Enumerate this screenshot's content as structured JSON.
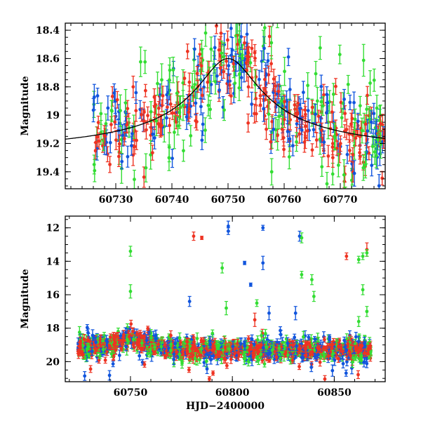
{
  "colors": {
    "green": "#33dd33",
    "blue": "#1155dd",
    "red": "#ee3322",
    "model": "#000000"
  },
  "chart_data": [
    {
      "type": "scatter",
      "panel": "top",
      "xlabel": "",
      "ylabel": "Magnitude",
      "xlim": [
        60721,
        60778
      ],
      "ylim": [
        19.52,
        18.35
      ],
      "y_inverted": true,
      "xticks_major": [
        60730,
        60740,
        60750,
        60760,
        60770
      ],
      "yticks_major": [
        18.4,
        18.6,
        18.8,
        19,
        19.2,
        19.4
      ],
      "ytick_labels": [
        "18.4",
        "18.6",
        "18.8",
        "19",
        "19.2",
        "19.4"
      ],
      "model_curve": {
        "description_free": true,
        "peak_time": 60750,
        "baseline_mag": 19.3,
        "peak_mag": 18.6,
        "width_days": 5.5
      },
      "series": [
        {
          "color_key": "green",
          "scatter": 0.22,
          "err": 0.09
        },
        {
          "color_key": "blue",
          "scatter": 0.16,
          "err": 0.07
        },
        {
          "color_key": "red",
          "scatter": 0.13,
          "err": 0.06
        }
      ]
    },
    {
      "type": "scatter",
      "panel": "bottom",
      "xlabel": "HJD−2400000",
      "ylabel": "Magnitude",
      "xlim": [
        60718,
        60875
      ],
      "ylim": [
        21.2,
        11.3
      ],
      "y_inverted": true,
      "xticks_major": [
        60750,
        60800,
        60850
      ],
      "yticks_major": [
        12,
        14,
        16,
        18,
        20
      ],
      "baseline_mag": 19.25,
      "outliers": [
        {
          "x": 60750,
          "y": 13.4,
          "err": 0.3,
          "color_key": "green"
        },
        {
          "x": 60750,
          "y": 15.8,
          "err": 0.4,
          "color_key": "green"
        },
        {
          "x": 60781,
          "y": 12.5,
          "err": 0.25,
          "color_key": "red"
        },
        {
          "x": 60785,
          "y": 12.6,
          "err": 0.1,
          "color_key": "red"
        },
        {
          "x": 60798,
          "y": 11.9,
          "err": 0.3,
          "color_key": "blue"
        },
        {
          "x": 60798,
          "y": 12.2,
          "err": 0.2,
          "color_key": "blue"
        },
        {
          "x": 60779,
          "y": 16.4,
          "err": 0.3,
          "color_key": "blue"
        },
        {
          "x": 60795,
          "y": 14.4,
          "err": 0.3,
          "color_key": "green"
        },
        {
          "x": 60806,
          "y": 14.1,
          "err": 0.1,
          "color_key": "blue"
        },
        {
          "x": 60809,
          "y": 15.4,
          "err": 0.1,
          "color_key": "blue"
        },
        {
          "x": 60812,
          "y": 16.5,
          "err": 0.2,
          "color_key": "green"
        },
        {
          "x": 60815,
          "y": 12.0,
          "err": 0.15,
          "color_key": "blue"
        },
        {
          "x": 60815,
          "y": 14.1,
          "err": 0.4,
          "color_key": "blue"
        },
        {
          "x": 60797,
          "y": 16.8,
          "err": 0.4,
          "color_key": "green"
        },
        {
          "x": 60833,
          "y": 12.5,
          "err": 0.3,
          "color_key": "blue"
        },
        {
          "x": 60834,
          "y": 12.6,
          "err": 0.3,
          "color_key": "green"
        },
        {
          "x": 60834,
          "y": 14.8,
          "err": 0.2,
          "color_key": "green"
        },
        {
          "x": 60839,
          "y": 15.1,
          "err": 0.3,
          "color_key": "green"
        },
        {
          "x": 60840,
          "y": 16.1,
          "err": 0.3,
          "color_key": "green"
        },
        {
          "x": 60831,
          "y": 17.1,
          "err": 0.4,
          "color_key": "blue"
        },
        {
          "x": 60818,
          "y": 17.1,
          "err": 0.4,
          "color_key": "blue"
        },
        {
          "x": 60811,
          "y": 17.5,
          "err": 0.4,
          "color_key": "red"
        },
        {
          "x": 60856,
          "y": 13.7,
          "err": 0.2,
          "color_key": "red"
        },
        {
          "x": 60862,
          "y": 13.9,
          "err": 0.2,
          "color_key": "green"
        },
        {
          "x": 60864,
          "y": 13.7,
          "err": 0.2,
          "color_key": "green"
        },
        {
          "x": 60866,
          "y": 13.3,
          "err": 0.4,
          "color_key": "red"
        },
        {
          "x": 60866,
          "y": 13.5,
          "err": 0.2,
          "color_key": "green"
        },
        {
          "x": 60864,
          "y": 15.7,
          "err": 0.3,
          "color_key": "green"
        },
        {
          "x": 60866,
          "y": 17.0,
          "err": 0.3,
          "color_key": "green"
        },
        {
          "x": 60862,
          "y": 17.6,
          "err": 0.3,
          "color_key": "green"
        }
      ],
      "series": [
        {
          "color_key": "green",
          "scatter": 0.35,
          "err": 0.25
        },
        {
          "color_key": "blue",
          "scatter": 0.35,
          "err": 0.25
        },
        {
          "color_key": "red",
          "scatter": 0.25,
          "err": 0.2
        }
      ]
    }
  ]
}
